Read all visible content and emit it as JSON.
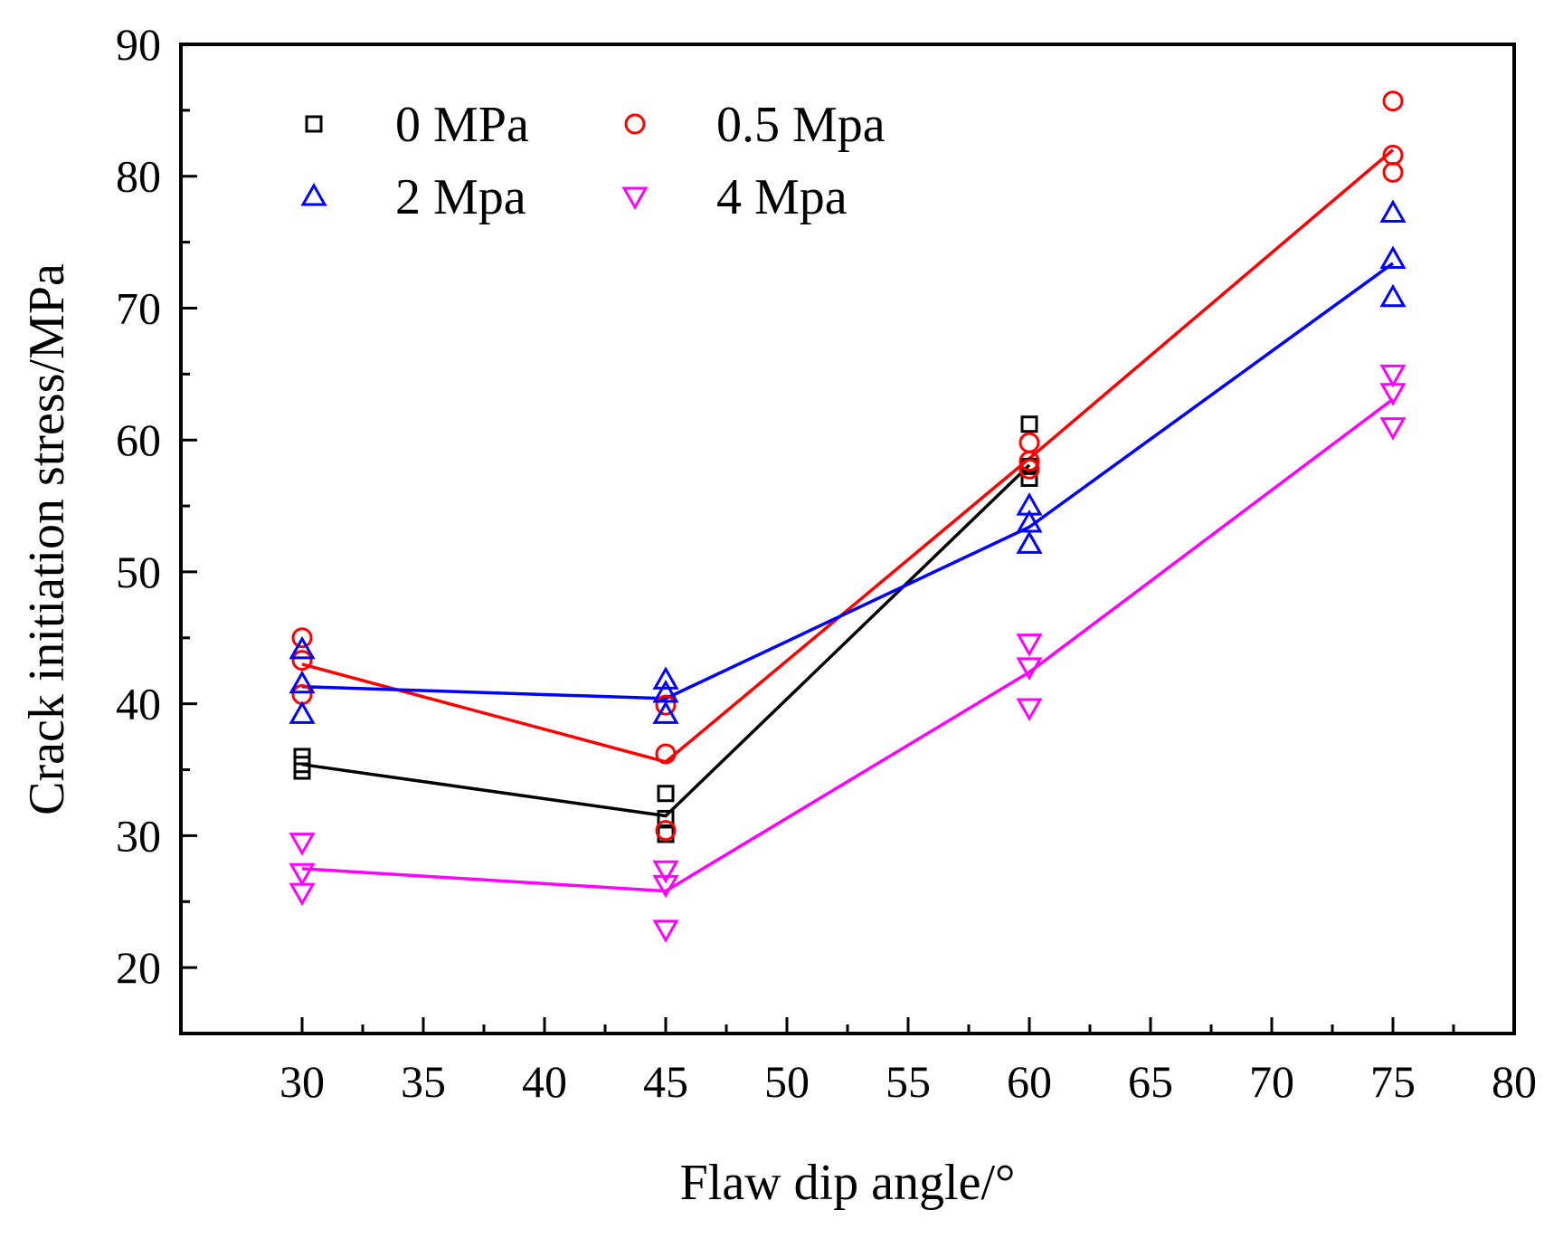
{
  "chart_data": {
    "type": "scatter",
    "title": "",
    "xlabel": "Flaw dip angle/°",
    "ylabel": "Crack initiation stress/MPa",
    "xlim": [
      25,
      80
    ],
    "ylim": [
      15,
      90
    ],
    "xticks": [
      30,
      35,
      40,
      45,
      50,
      55,
      60,
      65,
      70,
      75,
      80
    ],
    "yticks": [
      20,
      30,
      40,
      50,
      60,
      70,
      80,
      90
    ],
    "grid": false,
    "legend_position": "top-left",
    "series": [
      {
        "name": "0 MPa",
        "color": "#000000",
        "marker": "square",
        "points": [
          [
            30,
            36.0
          ],
          [
            30,
            35.4
          ],
          [
            30,
            34.9
          ],
          [
            45,
            33.2
          ],
          [
            45,
            31.3
          ],
          [
            45,
            30.1
          ],
          [
            60,
            61.2
          ],
          [
            60,
            58.0
          ],
          [
            60,
            57.1
          ]
        ],
        "line": [
          [
            30,
            35.4
          ],
          [
            45,
            31.5
          ],
          [
            60,
            58.1
          ]
        ]
      },
      {
        "name": "0.5 Mpa",
        "color": "#ff0000",
        "marker": "circle",
        "points": [
          [
            30,
            45.0
          ],
          [
            30,
            43.3
          ],
          [
            30,
            40.7
          ],
          [
            45,
            39.9
          ],
          [
            45,
            36.2
          ],
          [
            45,
            30.4
          ],
          [
            60,
            59.8
          ],
          [
            60,
            58.4
          ],
          [
            60,
            57.8
          ],
          [
            75,
            85.7
          ],
          [
            75,
            81.6
          ],
          [
            75,
            80.3
          ]
        ],
        "line": [
          [
            30,
            43.0
          ],
          [
            45,
            35.6
          ],
          [
            60,
            58.6
          ],
          [
            75,
            82.0
          ]
        ]
      },
      {
        "name": "2 Mpa",
        "color": "#0000ff",
        "marker": "triangle-up",
        "points": [
          [
            30,
            44.1
          ],
          [
            30,
            41.5
          ],
          [
            30,
            39.2
          ],
          [
            45,
            41.8
          ],
          [
            45,
            40.8
          ],
          [
            45,
            39.2
          ],
          [
            60,
            55.0
          ],
          [
            60,
            53.7
          ],
          [
            60,
            52.1
          ],
          [
            75,
            77.2
          ],
          [
            75,
            73.7
          ],
          [
            75,
            70.8
          ]
        ],
        "line": [
          [
            30,
            41.3
          ],
          [
            45,
            40.4
          ],
          [
            60,
            53.4
          ],
          [
            75,
            73.4
          ]
        ]
      },
      {
        "name": "4 Mpa",
        "color": "#ff00ff",
        "marker": "triangle-down",
        "points": [
          [
            30,
            29.5
          ],
          [
            30,
            27.2
          ],
          [
            30,
            25.7
          ],
          [
            45,
            27.4
          ],
          [
            45,
            26.3
          ],
          [
            45,
            22.9
          ],
          [
            60,
            44.6
          ],
          [
            60,
            42.8
          ],
          [
            60,
            39.7
          ],
          [
            75,
            65.0
          ],
          [
            75,
            63.6
          ],
          [
            75,
            61.0
          ]
        ],
        "line": [
          [
            30,
            27.5
          ],
          [
            45,
            25.8
          ],
          [
            60,
            42.4
          ],
          [
            75,
            63.1
          ]
        ]
      }
    ]
  }
}
